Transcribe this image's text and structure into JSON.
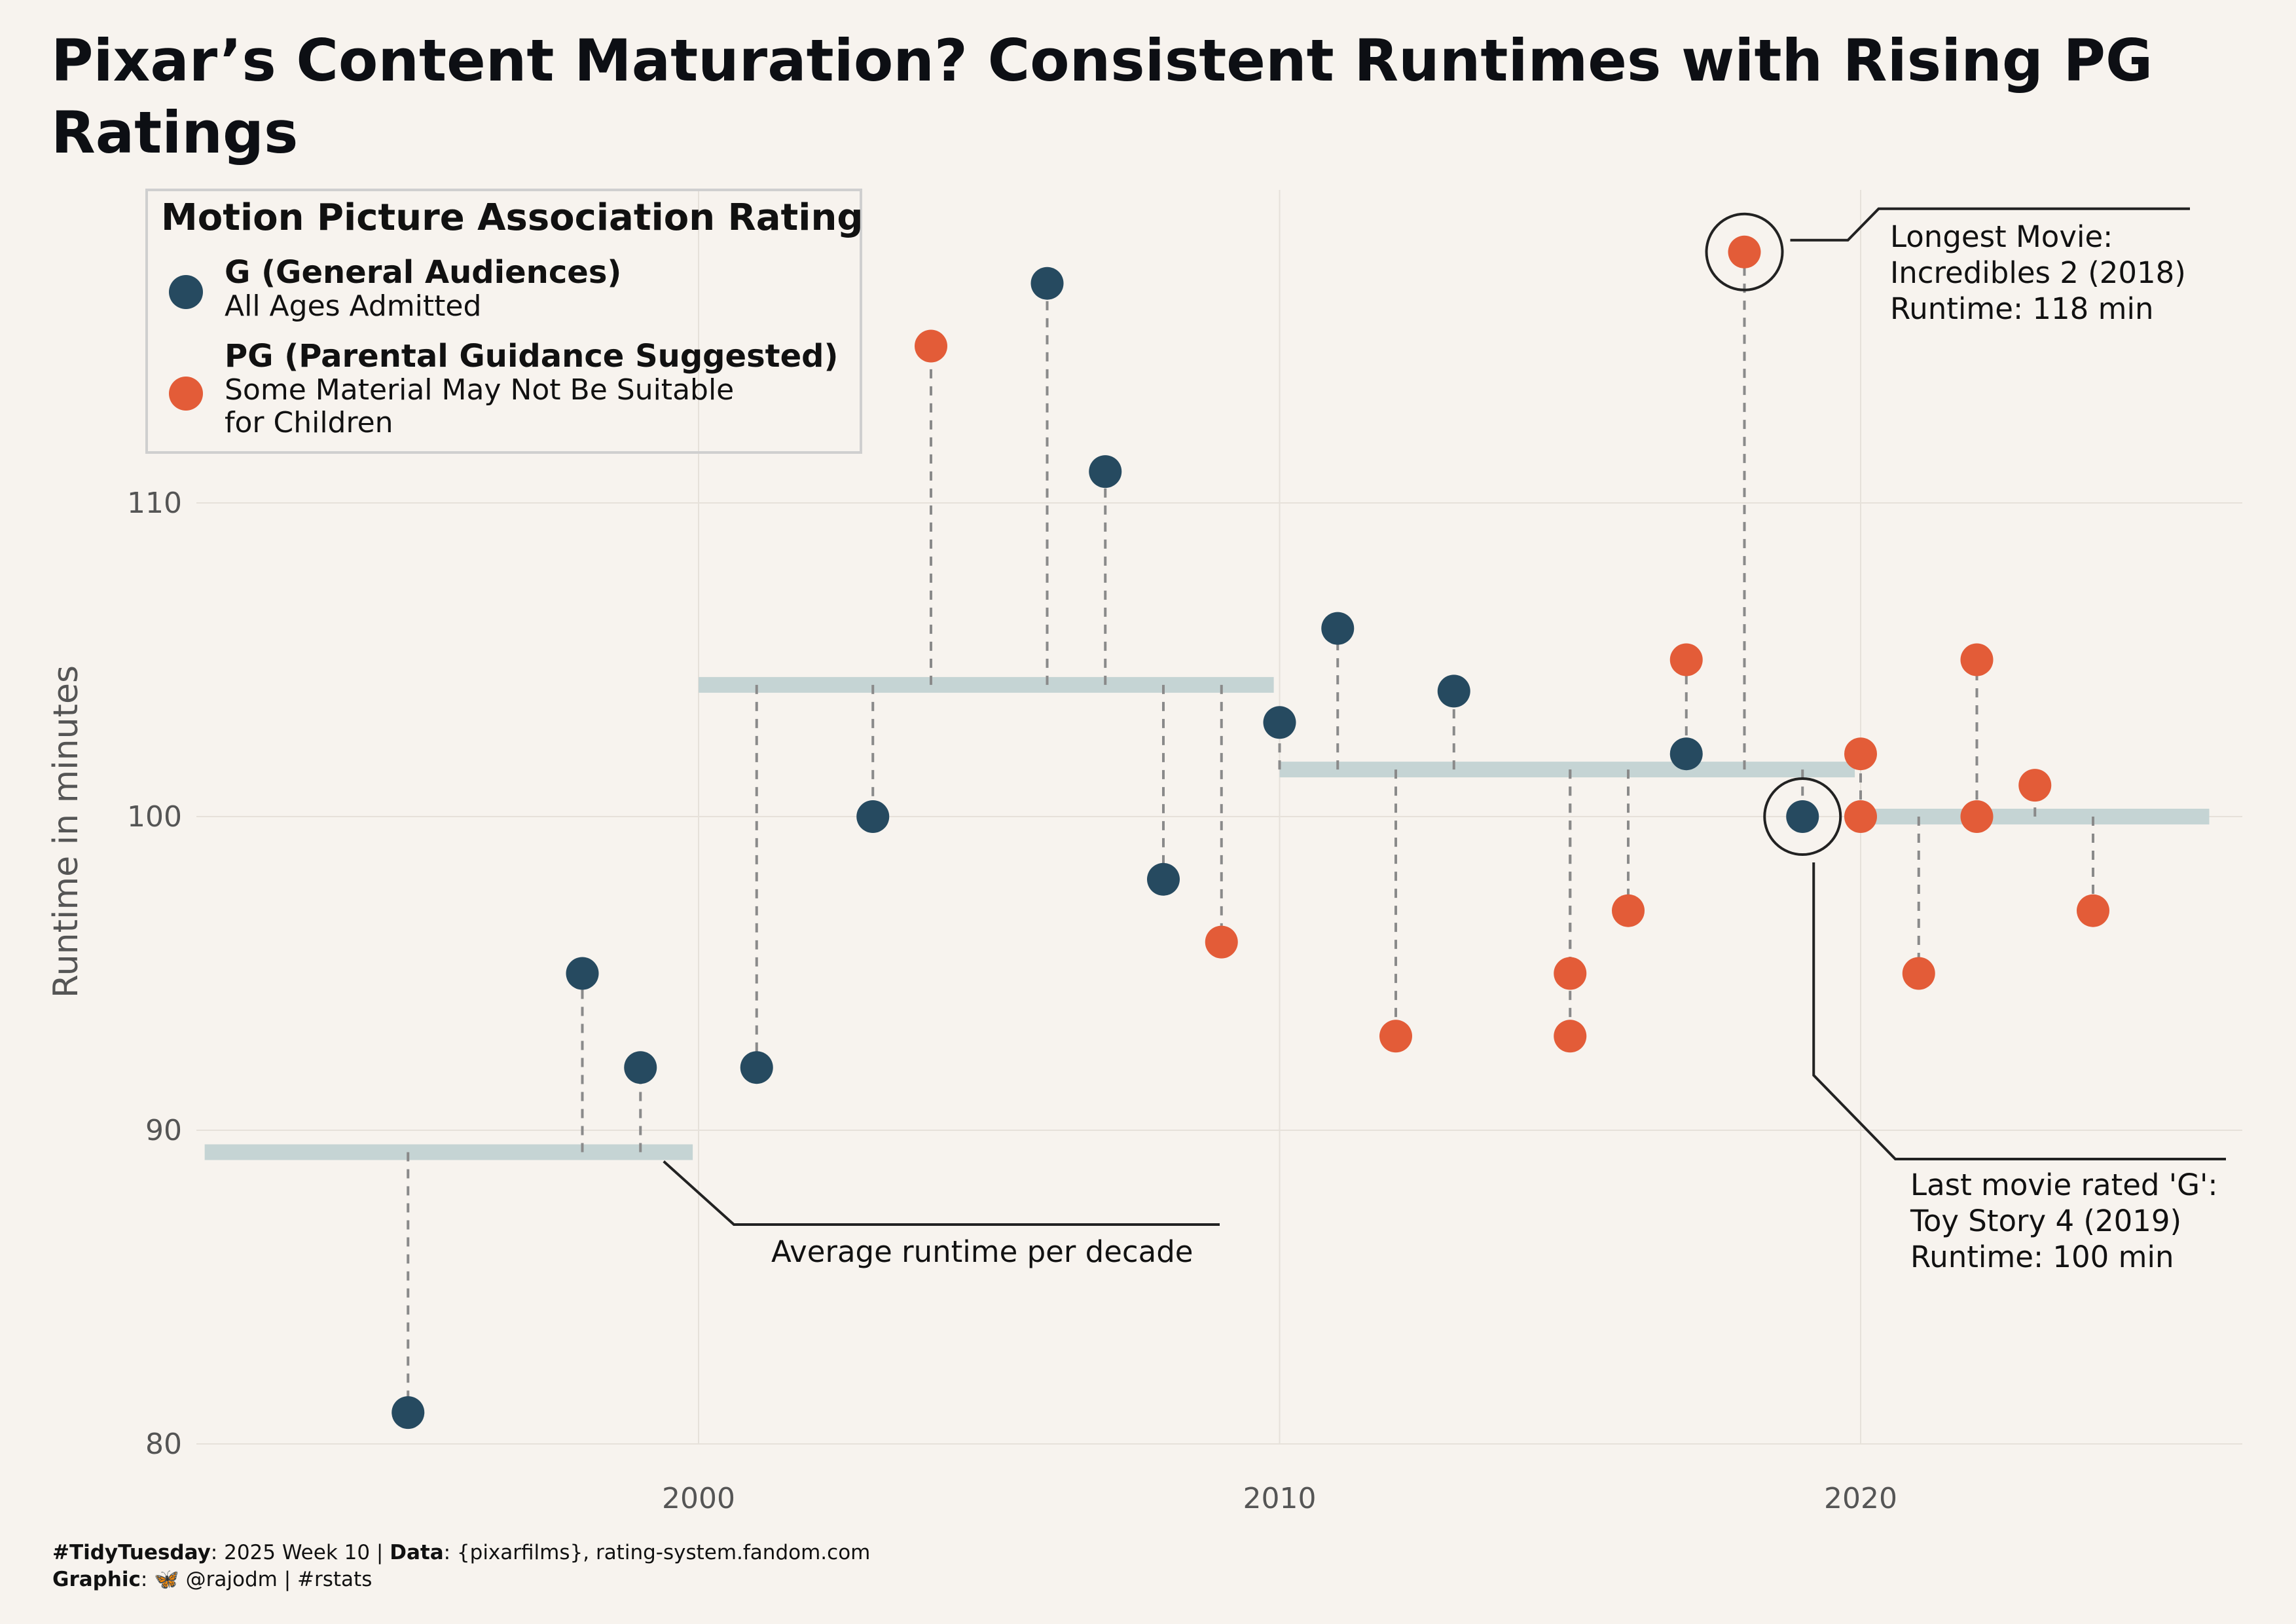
{
  "title": "Pixar’s Content Maturation? Consistent Runtimes with Rising PG Ratings",
  "legend": {
    "title": "Motion Picture Association Rating",
    "g_label": "G (General Audiences)",
    "g_desc": "All Ages Admitted",
    "pg_label": "PG (Parental Guidance Suggested)",
    "pg_desc_line1": "Some Material May Not Be Suitable",
    "pg_desc_line2": "for Children"
  },
  "annotations": {
    "longest_line1": "Longest Movie:",
    "longest_line2": "Incredibles 2 (2018)",
    "longest_line3": "Runtime: 118 min",
    "last_g_line1": "Last movie rated 'G':",
    "last_g_line2": "Toy Story 4 (2019)",
    "last_g_line3": "Runtime: 100 min",
    "avg_label": "Average runtime per decade"
  },
  "caption": {
    "line1_tag": "#TidyTuesday",
    "line1_rest": ": 2025 Week 10 | ",
    "line1_data_label": "Data",
    "line1_data": ": {pixarfilms}, rating-system.fandom.com",
    "line2_label": "Graphic",
    "line2_icon": "butterfly-icon",
    "line2_rest": ": 🦋 @rajodm | #rstats"
  },
  "colors": {
    "g": "#264a60",
    "pg": "#e35c38",
    "avg_band": "#c5d4d4",
    "background": "#f7f3ee"
  },
  "chart_data": {
    "type": "scatter",
    "ylabel": "Runtime in minutes",
    "xlim": [
      1991.5,
      2026.5
    ],
    "ylim": [
      80,
      117
    ],
    "yticks": [
      80,
      90,
      100,
      110
    ],
    "xticks": [
      2000,
      2010,
      2020
    ],
    "grid": true,
    "legend_position": "top-left",
    "series": [
      {
        "name": "G (General Audiences)",
        "color": "#264a60",
        "points": [
          [
            1995,
            81
          ],
          [
            1998,
            95
          ],
          [
            1999,
            92
          ],
          [
            2001,
            92
          ],
          [
            2003,
            100
          ],
          [
            2006,
            117
          ],
          [
            2007,
            111
          ],
          [
            2008,
            98
          ],
          [
            2010,
            103
          ],
          [
            2011,
            106
          ],
          [
            2013,
            104
          ],
          [
            2017,
            102
          ],
          [
            2019,
            100
          ]
        ]
      },
      {
        "name": "PG (Parental Guidance Suggested)",
        "color": "#e35c38",
        "points": [
          [
            2004,
            115
          ],
          [
            2009,
            96
          ],
          [
            2012,
            93
          ],
          [
            2015,
            95
          ],
          [
            2015,
            93
          ],
          [
            2016,
            97
          ],
          [
            2017,
            105
          ],
          [
            2018,
            118
          ],
          [
            2020,
            102
          ],
          [
            2020,
            100
          ],
          [
            2021,
            95
          ],
          [
            2022,
            105
          ],
          [
            2022,
            100
          ],
          [
            2023,
            101
          ],
          [
            2024,
            97
          ]
        ]
      }
    ],
    "decade_averages": [
      {
        "from": 1991.5,
        "to": 1999.9,
        "value": 89.3
      },
      {
        "from": 2000.0,
        "to": 2009.9,
        "value": 104.2
      },
      {
        "from": 2010.0,
        "to": 2019.9,
        "value": 101.5
      },
      {
        "from": 2020.0,
        "to": 2026.0,
        "value": 100.0
      }
    ],
    "highlighted": [
      [
        2018,
        118
      ],
      [
        2019,
        100
      ]
    ]
  }
}
